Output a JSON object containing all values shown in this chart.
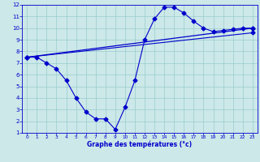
{
  "line1_x": [
    0,
    1,
    2,
    3,
    4,
    5,
    6,
    7,
    8,
    9,
    10,
    11,
    12,
    13,
    14,
    15,
    16,
    17,
    18,
    19,
    20,
    21,
    22,
    23
  ],
  "line1_y": [
    7.5,
    7.5,
    7.0,
    6.5,
    5.5,
    4.0,
    2.8,
    2.2,
    2.2,
    1.3,
    3.2,
    5.5,
    9.0,
    10.8,
    11.8,
    11.8,
    11.3,
    10.6,
    10.0,
    9.7,
    9.8,
    9.9,
    10.0,
    10.0
  ],
  "line2_x": [
    0,
    23
  ],
  "line2_y": [
    7.5,
    10.0
  ],
  "line3_x": [
    0,
    23
  ],
  "line3_y": [
    7.5,
    9.6
  ],
  "xlabel": "Graphe des températures (°c)",
  "xlim": [
    -0.5,
    23.5
  ],
  "ylim": [
    1,
    12
  ],
  "yticks": [
    1,
    2,
    3,
    4,
    5,
    6,
    7,
    8,
    9,
    10,
    11,
    12
  ],
  "xticks": [
    0,
    1,
    2,
    3,
    4,
    5,
    6,
    7,
    8,
    9,
    10,
    11,
    12,
    13,
    14,
    15,
    16,
    17,
    18,
    19,
    20,
    21,
    22,
    23
  ],
  "line_color": "#0000cc",
  "bg_color": "#cce8e8",
  "grid_color": "#99cccc",
  "markersize": 2.5
}
